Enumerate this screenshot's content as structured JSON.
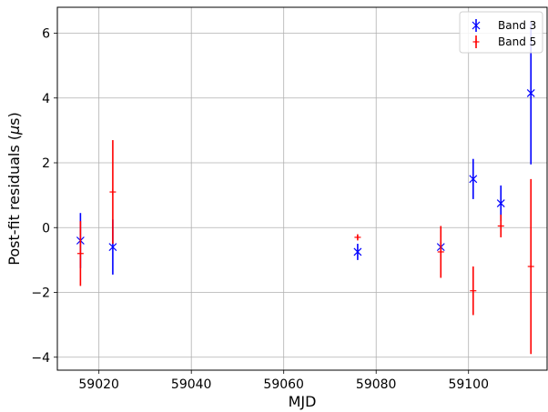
{
  "chart_data": {
    "type": "scatter",
    "xlabel": "MJD",
    "ylabel": "Post-fit residuals (μs)",
    "xlim": [
      59011,
      59117
    ],
    "ylim": [
      -4.4,
      6.8
    ],
    "xticks": [
      59020,
      59040,
      59060,
      59080,
      59100
    ],
    "xtick_labels": [
      "59020",
      "59040",
      "59060",
      "59080",
      "59100"
    ],
    "yticks": [
      -4,
      -2,
      0,
      2,
      4,
      6
    ],
    "ytick_labels": [
      "−4",
      "−2",
      "0",
      "2",
      "4",
      "6"
    ],
    "grid": true,
    "legend_position": "top-right",
    "series": [
      {
        "name": "Band 3",
        "color": "#0000ff",
        "marker": "x",
        "points": [
          {
            "x": 59016,
            "y": -0.4,
            "err": 0.85
          },
          {
            "x": 59023,
            "y": -0.6,
            "err": 0.85
          },
          {
            "x": 59076,
            "y": -0.75,
            "err": 0.25
          },
          {
            "x": 59094,
            "y": -0.6,
            "err": 0.15
          },
          {
            "x": 59101,
            "y": 1.5,
            "err": 0.62
          },
          {
            "x": 59107,
            "y": 0.75,
            "err": 0.55
          },
          {
            "x": 59113.5,
            "y": 4.15,
            "err": 2.2
          }
        ]
      },
      {
        "name": "Band 5",
        "color": "#ff0000",
        "marker": "+",
        "points": [
          {
            "x": 59016,
            "y": -0.8,
            "err": 1.0
          },
          {
            "x": 59023,
            "y": 1.1,
            "err": 1.6
          },
          {
            "x": 59076,
            "y": -0.3,
            "err": 0.08
          },
          {
            "x": 59094,
            "y": -0.75,
            "err": 0.8
          },
          {
            "x": 59101,
            "y": -1.95,
            "err": 0.75
          },
          {
            "x": 59107,
            "y": 0.05,
            "err": 0.35
          },
          {
            "x": 59113.5,
            "y": -1.2,
            "err": 2.7
          }
        ]
      }
    ]
  }
}
